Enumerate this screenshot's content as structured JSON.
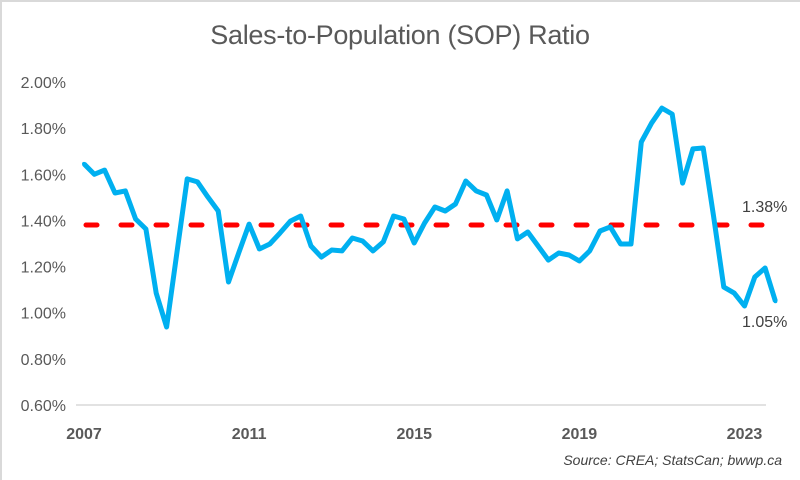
{
  "chart_data": {
    "type": "line",
    "title": "Sales-to-Population (SOP) Ratio",
    "xlabel": "",
    "ylabel": "",
    "ylim": [
      0.6,
      2.0
    ],
    "yticks": [
      0.6,
      0.8,
      1.0,
      1.2,
      1.4,
      1.6,
      1.8,
      2.0
    ],
    "ytick_labels": [
      "0.60%",
      "0.80%",
      "1.00%",
      "1.20%",
      "1.40%",
      "1.60%",
      "1.80%",
      "2.00%"
    ],
    "xticks": [
      2007,
      2011,
      2015,
      2019,
      2023
    ],
    "xtick_labels": [
      "2007",
      "2011",
      "2015",
      "2019",
      "2023"
    ],
    "x_start": 2007.0,
    "x_step": 0.25,
    "grid": false,
    "series": [
      {
        "name": "SOP Ratio",
        "color": "#00B0F0",
        "unit": "%",
        "values": [
          1.645,
          1.6,
          1.618,
          1.519,
          1.528,
          1.406,
          1.363,
          1.085,
          0.938,
          1.26,
          1.58,
          1.567,
          1.502,
          1.441,
          1.133,
          1.26,
          1.384,
          1.276,
          1.298,
          1.346,
          1.397,
          1.419,
          1.289,
          1.241,
          1.272,
          1.268,
          1.324,
          1.311,
          1.268,
          1.307,
          1.419,
          1.406,
          1.302,
          1.389,
          1.458,
          1.441,
          1.471,
          1.571,
          1.528,
          1.51,
          1.402,
          1.528,
          1.32,
          1.35,
          1.289,
          1.228,
          1.259,
          1.25,
          1.224,
          1.268,
          1.354,
          1.372,
          1.298,
          1.298,
          1.74,
          1.822,
          1.887,
          1.861,
          1.562,
          1.71,
          1.714,
          1.42,
          1.111,
          1.085,
          1.029,
          1.155,
          1.194,
          1.05
        ]
      },
      {
        "name": "Average",
        "color": "#FF0000",
        "style": "dashed",
        "value": 1.38
      }
    ],
    "annotations": [
      {
        "text": "1.38%",
        "target": "average"
      },
      {
        "text": "1.05%",
        "target": "last-point"
      }
    ],
    "source": "Source: CREA; StatsCan; bwwp.ca"
  }
}
